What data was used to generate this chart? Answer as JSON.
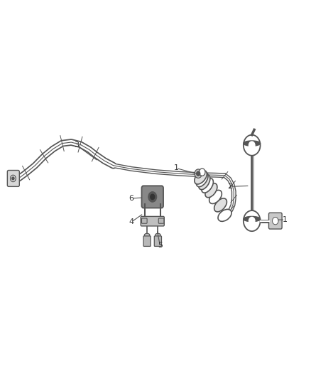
{
  "background_color": "#ffffff",
  "line_color": "#555555",
  "label_color": "#333333",
  "label_fontsize": 8,
  "fig_width": 4.38,
  "fig_height": 5.33,
  "dpi": 100
}
